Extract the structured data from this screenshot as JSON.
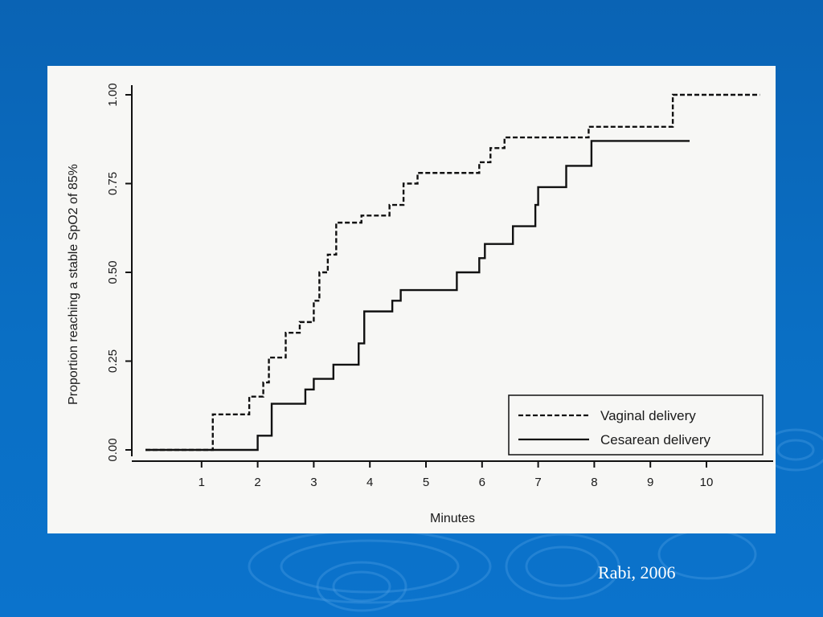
{
  "slide": {
    "citation": "Rabi, 2006",
    "background_color": "#0a6ac0",
    "panel_color": "#f7f7f5"
  },
  "chart_data": {
    "type": "line",
    "title": "",
    "xlabel": "Minutes",
    "ylabel": "Proportion reaching a stable SpO2 of 85%",
    "xlim": [
      0,
      11
    ],
    "ylim": [
      0,
      1
    ],
    "x_ticks": [
      1,
      2,
      3,
      4,
      5,
      6,
      7,
      8,
      9,
      10
    ],
    "y_ticks": [
      "0.00",
      "0.25",
      "0.50",
      "0.75",
      "1.00"
    ],
    "grid": false,
    "legend_position": "bottom-right",
    "series": [
      {
        "name": "Vaginal delivery",
        "line_style": "dashed",
        "step": true,
        "points": [
          [
            0,
            0
          ],
          [
            1.2,
            0.1
          ],
          [
            1.85,
            0.15
          ],
          [
            2.1,
            0.19
          ],
          [
            2.2,
            0.26
          ],
          [
            2.5,
            0.33
          ],
          [
            2.75,
            0.36
          ],
          [
            3.0,
            0.42
          ],
          [
            3.1,
            0.5
          ],
          [
            3.25,
            0.55
          ],
          [
            3.4,
            0.64
          ],
          [
            3.85,
            0.66
          ],
          [
            4.35,
            0.69
          ],
          [
            4.6,
            0.75
          ],
          [
            4.85,
            0.78
          ],
          [
            5.95,
            0.81
          ],
          [
            6.15,
            0.85
          ],
          [
            6.4,
            0.88
          ],
          [
            7.9,
            0.91
          ],
          [
            9.4,
            1.0
          ],
          [
            10.95,
            1.0
          ]
        ]
      },
      {
        "name": "Cesarean delivery",
        "line_style": "solid",
        "step": true,
        "points": [
          [
            0,
            0
          ],
          [
            2.0,
            0.04
          ],
          [
            2.25,
            0.13
          ],
          [
            2.85,
            0.17
          ],
          [
            3.0,
            0.2
          ],
          [
            3.35,
            0.24
          ],
          [
            3.8,
            0.3
          ],
          [
            3.9,
            0.39
          ],
          [
            4.4,
            0.42
          ],
          [
            4.55,
            0.45
          ],
          [
            5.55,
            0.5
          ],
          [
            5.95,
            0.54
          ],
          [
            6.05,
            0.58
          ],
          [
            6.55,
            0.63
          ],
          [
            6.95,
            0.69
          ],
          [
            7.0,
            0.74
          ],
          [
            7.5,
            0.8
          ],
          [
            7.95,
            0.87
          ],
          [
            9.7,
            0.87
          ]
        ]
      }
    ]
  }
}
